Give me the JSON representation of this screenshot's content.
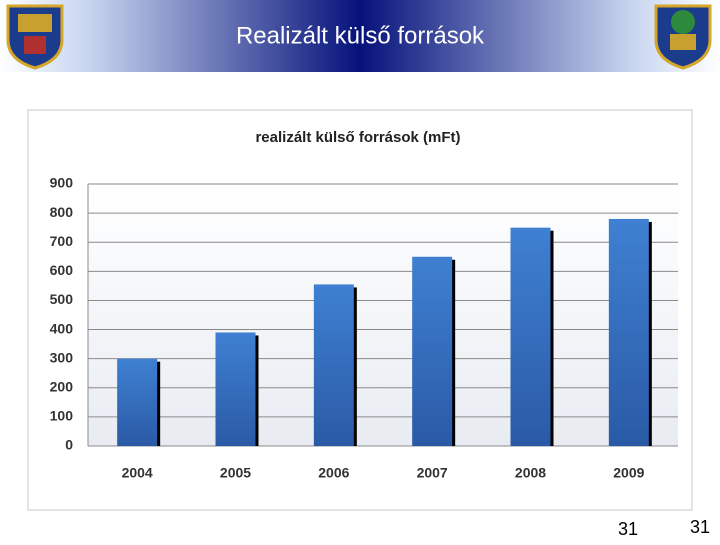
{
  "header": {
    "title": "Realizált külső források"
  },
  "chart_data": {
    "type": "bar",
    "title": "realizált külső források (mFt)",
    "categories": [
      "2004",
      "2005",
      "2006",
      "2007",
      "2008",
      "2009"
    ],
    "values": [
      300,
      390,
      555,
      650,
      750,
      780
    ],
    "color": "#3a78c8",
    "ylim": [
      0,
      900
    ],
    "yticks": [
      0,
      100,
      200,
      300,
      400,
      500,
      600,
      700,
      800,
      900
    ],
    "grid": true
  },
  "footer": {
    "page_number": "31",
    "slide_number": "31"
  }
}
